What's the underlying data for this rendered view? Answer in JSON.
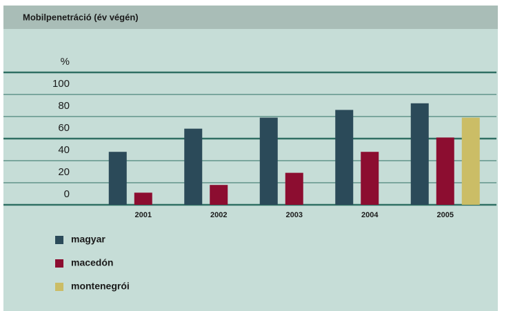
{
  "chart_data": {
    "type": "bar",
    "title": "Mobilpenetráció (év végén)",
    "y_label": "%",
    "categories": [
      "2001",
      "2002",
      "2003",
      "2004",
      "2005"
    ],
    "series": [
      {
        "name": "magyar",
        "color": "#2b4a59",
        "values": [
          48,
          69,
          79,
          86,
          92
        ]
      },
      {
        "name": "macedón",
        "color": "#8c0d30",
        "values": [
          11,
          18,
          29,
          48,
          61
        ]
      },
      {
        "name": "montenegrói",
        "color": "#cbbd66",
        "values": [
          null,
          null,
          null,
          null,
          79
        ]
      }
    ],
    "ylim": [
      0,
      120
    ],
    "yticks": [
      0,
      20,
      40,
      60,
      80,
      100
    ],
    "grid": true
  }
}
